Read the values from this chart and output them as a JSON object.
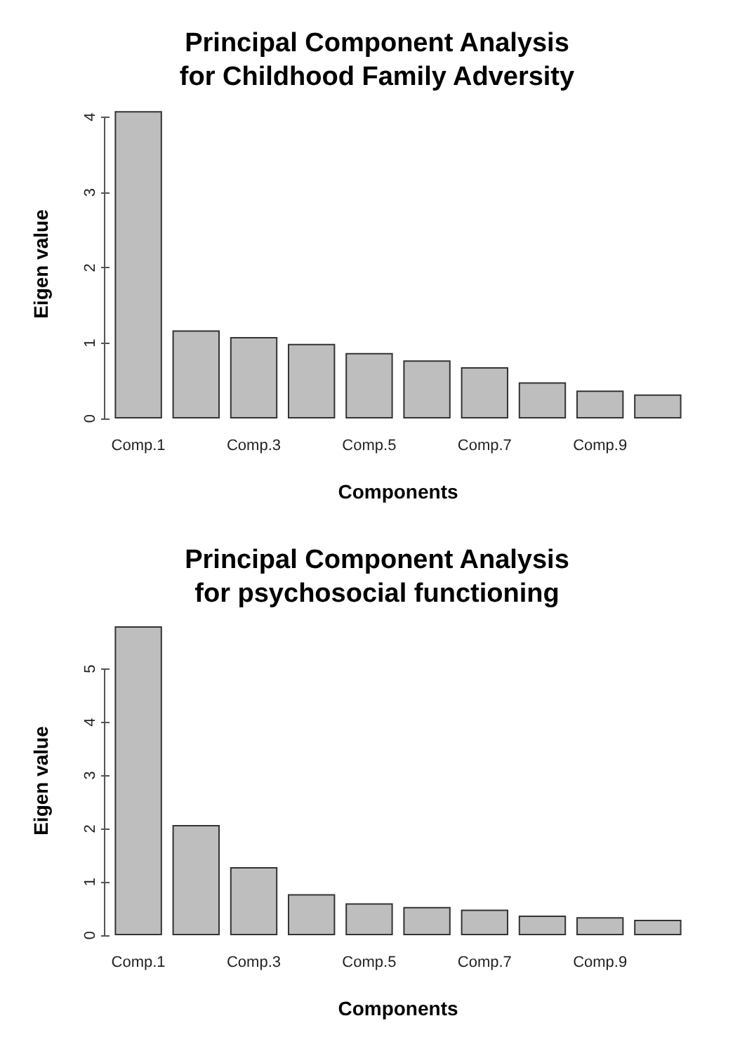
{
  "chart_data": [
    {
      "type": "bar",
      "title": "Principal Component Analysis\nfor Childhood Family Adversity",
      "xlabel": "Components",
      "ylabel": "Eigen value",
      "categories": [
        "Comp.1",
        null,
        "Comp.3",
        null,
        "Comp.5",
        null,
        "Comp.7",
        null,
        "Comp.9",
        null
      ],
      "values": [
        4.08,
        1.17,
        1.08,
        0.99,
        0.87,
        0.77,
        0.68,
        0.48,
        0.37,
        0.32
      ],
      "color": "#bebebe",
      "ylim": [
        0,
        4.1
      ],
      "yticks": [
        0,
        1,
        2,
        3,
        4
      ],
      "grid": false
    },
    {
      "type": "bar",
      "title": "Principal Component Analysis\nfor psychosocial functioning",
      "xlabel": "Components",
      "ylabel": "Eigen value",
      "categories": [
        "Comp.1",
        null,
        "Comp.3",
        null,
        "Comp.5",
        null,
        "Comp.7",
        null,
        "Comp.9",
        null
      ],
      "values": [
        5.8,
        2.07,
        1.28,
        0.77,
        0.6,
        0.53,
        0.48,
        0.37,
        0.34,
        0.29
      ],
      "color": "#bebebe",
      "ylim": [
        0,
        5.8
      ],
      "yticks": [
        0,
        1,
        2,
        3,
        4,
        5
      ],
      "grid": false
    }
  ]
}
